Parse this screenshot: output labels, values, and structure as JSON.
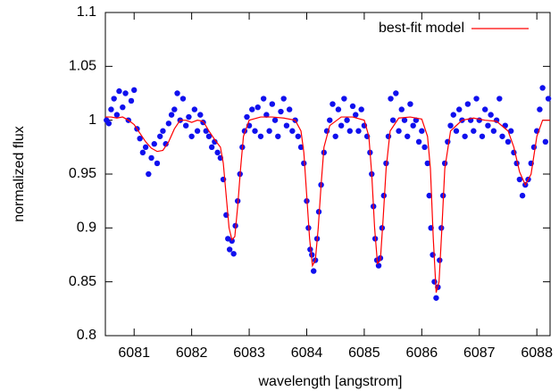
{
  "chart_data": {
    "type": "scatter",
    "xlabel": "wavelength [angstrom]",
    "ylabel": "normalized flux",
    "xlim": [
      6080.5,
      6088.23
    ],
    "ylim": [
      0.8,
      1.1
    ],
    "xticks": [
      6081,
      6082,
      6083,
      6084,
      6085,
      6086,
      6087,
      6088
    ],
    "yticks": [
      0.8,
      0.85,
      0.9,
      0.95,
      1,
      1.05,
      1.1
    ],
    "legend": "top-right",
    "series": [
      {
        "type": "scatter",
        "color": "#1010ee",
        "x": [
          6080.52,
          6080.56,
          6080.6,
          6080.65,
          6080.7,
          6080.74,
          6080.8,
          6080.85,
          6080.9,
          6080.95,
          6081.0,
          6081.05,
          6081.1,
          6081.15,
          6081.2,
          6081.25,
          6081.3,
          6081.35,
          6081.4,
          6081.45,
          6081.5,
          6081.55,
          6081.6,
          6081.65,
          6081.7,
          6081.75,
          6081.8,
          6081.85,
          6081.9,
          6081.95,
          6082.0,
          6082.05,
          6082.1,
          6082.15,
          6082.2,
          6082.25,
          6082.3,
          6082.35,
          6082.4,
          6082.45,
          6082.5,
          6082.55,
          6082.6,
          6082.63,
          6082.66,
          6082.7,
          6082.73,
          6082.76,
          6082.8,
          6082.84,
          6082.88,
          6082.92,
          6082.96,
          6083.0,
          6083.05,
          6083.1,
          6083.15,
          6083.2,
          6083.25,
          6083.3,
          6083.35,
          6083.4,
          6083.45,
          6083.5,
          6083.55,
          6083.6,
          6083.65,
          6083.7,
          6083.75,
          6083.8,
          6083.85,
          6083.9,
          6083.95,
          6084.0,
          6084.03,
          6084.06,
          6084.09,
          6084.12,
          6084.15,
          6084.18,
          6084.21,
          6084.25,
          6084.3,
          6084.35,
          6084.4,
          6084.45,
          6084.5,
          6084.55,
          6084.6,
          6084.65,
          6084.7,
          6084.75,
          6084.8,
          6084.85,
          6084.9,
          6084.95,
          6085.0,
          6085.05,
          6085.1,
          6085.13,
          6085.16,
          6085.19,
          6085.22,
          6085.25,
          6085.28,
          6085.31,
          6085.34,
          6085.38,
          6085.42,
          6085.46,
          6085.5,
          6085.55,
          6085.6,
          6085.65,
          6085.7,
          6085.75,
          6085.8,
          6085.85,
          6085.9,
          6085.95,
          6086.0,
          6086.05,
          6086.1,
          6086.13,
          6086.16,
          6086.19,
          6086.22,
          6086.25,
          6086.28,
          6086.31,
          6086.34,
          6086.37,
          6086.4,
          6086.45,
          6086.5,
          6086.55,
          6086.6,
          6086.65,
          6086.7,
          6086.75,
          6086.8,
          6086.85,
          6086.9,
          6086.95,
          6087.0,
          6087.05,
          6087.1,
          6087.15,
          6087.2,
          6087.25,
          6087.3,
          6087.35,
          6087.4,
          6087.45,
          6087.5,
          6087.55,
          6087.6,
          6087.65,
          6087.7,
          6087.75,
          6087.8,
          6087.85,
          6087.9,
          6087.95,
          6088.0,
          6088.05,
          6088.1,
          6088.15,
          6088.2
        ],
        "values": [
          1.0,
          0.997,
          1.01,
          1.02,
          1.005,
          1.027,
          1.012,
          1.025,
          1.0,
          1.018,
          1.028,
          0.992,
          0.983,
          0.97,
          0.975,
          0.95,
          0.965,
          0.978,
          0.96,
          0.985,
          0.99,
          0.978,
          0.997,
          1.005,
          1.01,
          1.025,
          1.0,
          1.02,
          0.995,
          1.003,
          0.985,
          1.01,
          0.99,
          1.005,
          0.998,
          0.99,
          0.985,
          0.975,
          0.98,
          0.97,
          0.965,
          0.945,
          0.912,
          0.89,
          0.88,
          0.888,
          0.876,
          0.902,
          0.925,
          0.95,
          0.975,
          0.99,
          1.003,
          0.995,
          1.01,
          0.99,
          1.012,
          0.985,
          1.02,
          1.005,
          0.99,
          1.015,
          1.0,
          0.985,
          1.008,
          1.02,
          0.995,
          1.01,
          0.99,
          1.0,
          0.985,
          0.975,
          0.96,
          0.925,
          0.9,
          0.88,
          0.875,
          0.86,
          0.87,
          0.89,
          0.915,
          0.94,
          0.97,
          0.99,
          1.0,
          1.015,
          0.985,
          1.01,
          0.995,
          1.02,
          1.0,
          0.99,
          1.013,
          1.005,
          0.99,
          1.01,
          0.995,
          0.985,
          0.97,
          0.95,
          0.92,
          0.89,
          0.87,
          0.865,
          0.872,
          0.9,
          0.93,
          0.96,
          0.985,
          1.02,
          1.0,
          1.025,
          0.99,
          1.01,
          1.0,
          0.985,
          1.015,
          0.995,
          1.0,
          0.98,
          0.99,
          0.975,
          0.96,
          0.93,
          0.9,
          0.875,
          0.85,
          0.835,
          0.845,
          0.87,
          0.9,
          0.93,
          0.96,
          0.98,
          0.995,
          1.005,
          0.99,
          1.01,
          1.0,
          0.985,
          1.015,
          1.0,
          0.99,
          1.02,
          1.0,
          0.985,
          1.01,
          0.995,
          1.005,
          0.99,
          1.0,
          1.02,
          0.985,
          0.995,
          0.98,
          0.99,
          0.97,
          0.96,
          0.945,
          0.93,
          0.94,
          0.945,
          0.96,
          0.975,
          0.99,
          1.01,
          1.03,
          0.98,
          1.02
        ]
      },
      {
        "type": "line",
        "name": "best-fit model",
        "color": "#ff0000",
        "x": [
          6080.5,
          6080.6,
          6080.7,
          6080.8,
          6080.9,
          6081.0,
          6081.1,
          6081.2,
          6081.3,
          6081.4,
          6081.5,
          6081.6,
          6081.7,
          6081.8,
          6081.9,
          6082.0,
          6082.1,
          6082.2,
          6082.3,
          6082.4,
          6082.5,
          6082.55,
          6082.6,
          6082.65,
          6082.7,
          6082.75,
          6082.8,
          6082.85,
          6082.9,
          6083.0,
          6083.2,
          6083.4,
          6083.6,
          6083.8,
          6083.9,
          6083.95,
          6084.0,
          6084.05,
          6084.1,
          6084.15,
          6084.2,
          6084.25,
          6084.3,
          6084.4,
          6084.6,
          6084.8,
          6085.0,
          6085.08,
          6085.13,
          6085.18,
          6085.23,
          6085.28,
          6085.33,
          6085.38,
          6085.45,
          6085.6,
          6085.8,
          6086.0,
          6086.1,
          6086.15,
          6086.2,
          6086.25,
          6086.3,
          6086.35,
          6086.4,
          6086.5,
          6086.7,
          6086.9,
          6087.1,
          6087.3,
          6087.5,
          6087.6,
          6087.7,
          6087.8,
          6087.9,
          6088.0,
          6088.1,
          6088.23
        ],
        "values": [
          1.003,
          1.003,
          1.002,
          1.003,
          1.0,
          0.996,
          0.988,
          0.98,
          0.974,
          0.971,
          0.972,
          0.98,
          0.992,
          1.0,
          1.0,
          0.998,
          1.0,
          0.999,
          0.99,
          0.982,
          0.975,
          0.96,
          0.93,
          0.9,
          0.889,
          0.892,
          0.92,
          0.955,
          0.985,
          1.0,
          1.003,
          1.003,
          1.002,
          1.0,
          0.99,
          0.97,
          0.93,
          0.89,
          0.865,
          0.87,
          0.9,
          0.94,
          0.975,
          0.995,
          1.003,
          1.003,
          1.0,
          0.985,
          0.95,
          0.9,
          0.867,
          0.87,
          0.91,
          0.955,
          0.99,
          1.002,
          1.003,
          1.001,
          0.985,
          0.955,
          0.89,
          0.84,
          0.85,
          0.9,
          0.955,
          0.99,
          1.0,
          1.002,
          1.0,
          0.999,
          0.99,
          0.975,
          0.952,
          0.94,
          0.95,
          0.985,
          1.0,
          1.0
        ]
      }
    ]
  }
}
